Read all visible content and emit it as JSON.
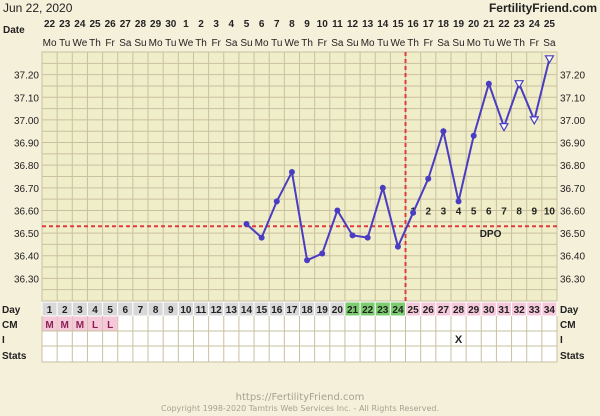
{
  "header": {
    "date": "Jun 22, 2020",
    "brand": "FertilityFriend.com"
  },
  "footer": {
    "url": "https://FertilityFriend.com",
    "copyright": "Copyright 1998-2020 Tamtris Web Services Inc. - All Rights Reserved."
  },
  "row_labels": {
    "date": "Date",
    "day": "Day",
    "cm": "CM",
    "i": "I",
    "stats": "Stats"
  },
  "colors": {
    "line": "#4A3DC2",
    "coverline": "#E03C3C",
    "ovulation": "#E03C3C",
    "grid": "#C9C09F",
    "plot_bg": "#F0EDC9",
    "row_pink": "#F5C8DA",
    "row_green": "#7ECC70",
    "row_grey": "#D8D8D8"
  },
  "chart_data": {
    "type": "line",
    "title": "",
    "xlabel": "Day",
    "ylabel": "",
    "ylim": [
      36.2,
      37.3
    ],
    "y_ticks": [
      36.3,
      36.4,
      36.5,
      36.6,
      36.7,
      36.8,
      36.9,
      37.0,
      37.1,
      37.2
    ],
    "y_tick_labels": [
      "36.30",
      "36.40",
      "36.50",
      "36.60",
      "36.70",
      "36.80",
      "36.90",
      "37.00",
      "37.10",
      "37.20"
    ],
    "grid": true,
    "cycle_days": [
      1,
      2,
      3,
      4,
      5,
      6,
      7,
      8,
      9,
      10,
      11,
      12,
      13,
      14,
      15,
      16,
      17,
      18,
      19,
      20,
      21,
      22,
      23,
      24,
      25,
      26,
      27,
      28,
      29,
      30,
      31,
      32,
      33,
      34
    ],
    "dates": [
      "22",
      "23",
      "24",
      "25",
      "26",
      "27",
      "28",
      "29",
      "30",
      "1",
      "2",
      "3",
      "4",
      "5",
      "6",
      "7",
      "8",
      "9",
      "10",
      "11",
      "12",
      "13",
      "14",
      "15",
      "16",
      "17",
      "18",
      "19",
      "20",
      "21",
      "22",
      "23",
      "24",
      "25"
    ],
    "weekdays": [
      "Mo",
      "Tu",
      "We",
      "Th",
      "Fr",
      "Sa",
      "Su",
      "Mo",
      "Tu",
      "We",
      "Th",
      "Fr",
      "Sa",
      "Su",
      "Mo",
      "Tu",
      "We",
      "Th",
      "Fr",
      "Sa",
      "Su",
      "Mo",
      "Tu",
      "We",
      "Th",
      "Fr",
      "Sa",
      "Su",
      "Mo",
      "Tu",
      "We",
      "Th",
      "Fr",
      "Sa"
    ],
    "day_row_highlight": {
      "21": "green",
      "22": "green",
      "23": "green",
      "24": "green",
      "25": "pink",
      "26": "pink",
      "27": "pink",
      "28": "pink",
      "29": "pink",
      "30": "pink",
      "31": "pink",
      "32": "pink",
      "33": "pink",
      "34": "pink"
    },
    "cm": [
      "M",
      "M",
      "M",
      "L",
      "L"
    ],
    "intercourse_marks": [
      {
        "day": 28,
        "mark": "X"
      }
    ],
    "series": [
      {
        "points": [
          {
            "day": 14,
            "temp": 36.54
          },
          {
            "day": 15,
            "temp": 36.48
          },
          {
            "day": 16,
            "temp": 36.64
          },
          {
            "day": 17,
            "temp": 36.77
          },
          {
            "day": 18,
            "temp": 36.38
          },
          {
            "day": 19,
            "temp": 36.41
          },
          {
            "day": 20,
            "temp": 36.6
          },
          {
            "day": 21,
            "temp": 36.49
          },
          {
            "day": 22,
            "temp": 36.48
          },
          {
            "day": 23,
            "temp": 36.7
          },
          {
            "day": 24,
            "temp": 36.44
          },
          {
            "day": 25,
            "temp": 36.59
          },
          {
            "day": 26,
            "temp": 36.74
          },
          {
            "day": 27,
            "temp": 36.95
          },
          {
            "day": 28,
            "temp": 36.64
          },
          {
            "day": 29,
            "temp": 36.93
          },
          {
            "day": 30,
            "temp": 37.16
          },
          {
            "day": 31,
            "temp": 36.97,
            "marker": "open-triangle-down"
          },
          {
            "day": 32,
            "temp": 37.16,
            "marker": "open-triangle-down"
          },
          {
            "day": 33,
            "temp": 37.0,
            "marker": "open-triangle-down"
          },
          {
            "day": 34,
            "temp": 37.27,
            "marker": "open-triangle-down"
          }
        ]
      }
    ],
    "coverline": 36.53,
    "ovulation_day": 24,
    "dpo": {
      "label": "DPO",
      "start_day": 25,
      "values": [
        1,
        2,
        3,
        4,
        5,
        6,
        7,
        8,
        9,
        10
      ]
    }
  }
}
